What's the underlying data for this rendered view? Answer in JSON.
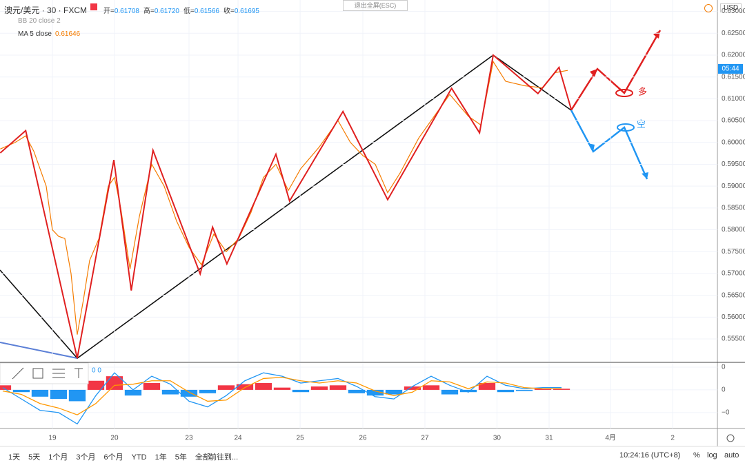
{
  "header": {
    "symbol": "澳元/美元 · 30 · FXCM",
    "ohlc": [
      {
        "k": "开=",
        "v": "0.61708"
      },
      {
        "k": "高=",
        "v": "0.61720"
      },
      {
        "k": "低=",
        "v": "0.61566"
      },
      {
        "k": "收=",
        "v": "0.61695"
      }
    ],
    "bb": "BB 20 close 2",
    "ma": "MA 5 close",
    "ma_value": "0.61646",
    "exit": "退出全屏(ESC)",
    "currency": "USD",
    "price_tag": "05:44"
  },
  "annotations": {
    "long": "多",
    "short": "空",
    "macd_params": "0 0"
  },
  "toolbar": {
    "ranges": [
      "1天",
      "5天",
      "1个月",
      "3个月",
      "6个月",
      "YTD",
      "1年",
      "5年",
      "全部"
    ],
    "goto": "前往到...",
    "clock": "10:24:16 (UTC+8)",
    "pct": "%",
    "log": "log",
    "auto": "auto"
  },
  "chart_data": [
    {
      "type": "line",
      "xlim": [
        -0.844,
        10.711
      ],
      "ylim": [
        0.5498,
        0.63262
      ],
      "xticks": [
        {
          "value": 0,
          "label": "19"
        },
        {
          "value": 1,
          "label": "20"
        },
        {
          "value": 2.2,
          "label": "23"
        },
        {
          "value": 2.99,
          "label": "24"
        },
        {
          "value": 3.99,
          "label": "25"
        },
        {
          "value": 5,
          "label": "26"
        },
        {
          "value": 6,
          "label": "27"
        },
        {
          "value": 7.16,
          "label": "30"
        },
        {
          "value": 8,
          "label": "31"
        },
        {
          "value": 8.99,
          "label": "4月"
        },
        {
          "value": 9.99,
          "label": "2"
        }
      ],
      "yticks": [
        {
          "value": 0.63,
          "label": "0.63000"
        },
        {
          "value": 0.625,
          "label": "0.62500"
        },
        {
          "value": 0.62,
          "label": "0.62000"
        },
        {
          "value": 0.615,
          "label": "0.61500"
        },
        {
          "value": 0.61,
          "label": "0.61000"
        },
        {
          "value": 0.605,
          "label": "0.60500"
        },
        {
          "value": 0.6,
          "label": "0.60000"
        },
        {
          "value": 0.595,
          "label": "0.59500"
        },
        {
          "value": 0.59,
          "label": "0.59000"
        },
        {
          "value": 0.585,
          "label": "0.58500"
        },
        {
          "value": 0.58,
          "label": "0.58000"
        },
        {
          "value": 0.575,
          "label": "0.57500"
        },
        {
          "value": 0.57,
          "label": "0.57000"
        },
        {
          "value": 0.565,
          "label": "0.56500"
        },
        {
          "value": 0.56,
          "label": "0.56000"
        },
        {
          "value": 0.555,
          "label": "0.55500"
        }
      ],
      "series": [
        {
          "name": "MA 5 close",
          "color": "#f57c00",
          "x": [
            -0.84,
            -0.6,
            -0.43,
            -0.3,
            -0.1,
            0.0,
            0.1,
            0.2,
            0.3,
            0.4,
            0.5,
            0.6,
            0.75,
            0.9,
            1.0,
            1.1,
            1.25,
            1.4,
            1.6,
            1.8,
            2.0,
            2.2,
            2.4,
            2.6,
            2.8,
            3.0,
            3.2,
            3.4,
            3.6,
            3.8,
            4.0,
            4.3,
            4.6,
            4.8,
            5.0,
            5.2,
            5.4,
            5.6,
            5.9,
            6.2,
            6.4,
            6.7,
            6.9,
            7.1,
            7.3,
            7.6,
            7.9,
            8.1,
            8.3
          ],
          "values": [
            0.5985,
            0.6,
            0.6015,
            0.598,
            0.59,
            0.58,
            0.5785,
            0.578,
            0.57,
            0.556,
            0.564,
            0.573,
            0.578,
            0.59,
            0.592,
            0.585,
            0.571,
            0.583,
            0.595,
            0.59,
            0.582,
            0.576,
            0.572,
            0.579,
            0.575,
            0.578,
            0.584,
            0.592,
            0.595,
            0.589,
            0.594,
            0.599,
            0.605,
            0.6,
            0.597,
            0.595,
            0.5885,
            0.593,
            0.601,
            0.607,
            0.611,
            0.606,
            0.604,
            0.6185,
            0.614,
            0.613,
            0.6125,
            0.616,
            0.6165
          ]
        },
        {
          "color": "#e02020",
          "x": [
            -0.84,
            -0.43,
            0.4,
            0.99,
            1.27,
            1.62,
            2.38,
            2.58,
            2.81,
            3.6,
            3.82,
            4.68,
            5.4,
            6.43,
            6.88,
            7.1,
            7.82,
            8.16,
            8.36
          ],
          "values": [
            0.5976,
            0.6027,
            0.5506,
            0.596,
            0.5661,
            0.5982,
            0.5699,
            0.5806,
            0.5722,
            0.5973,
            0.5866,
            0.6071,
            0.5869,
            0.6124,
            0.6022,
            0.62,
            0.6112,
            0.6172,
            0.6074
          ]
        }
      ]
    },
    {
      "type": "macd",
      "xlim": [
        -0.844,
        10.711
      ],
      "ylim": [
        -0.0034,
        0.00236
      ],
      "yticks": [
        {
          "value": 0.002,
          "label": "0"
        },
        0,
        {
          "value": -0.002,
          "label": "−0"
        }
      ],
      "x": [
        -0.8,
        -0.5,
        -0.2,
        0.1,
        0.4,
        0.7,
        1.0,
        1.3,
        1.6,
        1.9,
        2.2,
        2.5,
        2.8,
        3.1,
        3.4,
        3.7,
        4.0,
        4.3,
        4.6,
        4.9,
        5.2,
        5.5,
        5.8,
        6.1,
        6.4,
        6.7,
        7.0,
        7.3,
        7.6,
        7.9,
        8.2
      ],
      "histogram": {
        "up_color": "#f23645",
        "down_color": "#2196f3",
        "values": [
          0.0004,
          -0.0002,
          -0.0006,
          -0.0008,
          -0.001,
          0.0008,
          0.0012,
          -0.0005,
          0.0006,
          -0.0004,
          -0.0006,
          -0.0003,
          0.0004,
          0.0005,
          0.0006,
          0.0002,
          -0.0002,
          0.0003,
          0.0004,
          -0.0003,
          -0.0005,
          -0.0004,
          0.0003,
          0.0004,
          -0.0004,
          -0.0002,
          0.0006,
          -0.0002,
          -0.0001,
          0.0001,
          0.0001
        ]
      },
      "series": [
        {
          "color": "#2196f3",
          "values": [
            0.0002,
            -0.0008,
            -0.0018,
            -0.002,
            -0.003,
            -0.0005,
            0.0015,
            0.0,
            0.0012,
            0.0005,
            -0.001,
            -0.0015,
            -0.0005,
            0.0008,
            0.0015,
            0.0012,
            0.0006,
            0.0008,
            0.001,
            0.0003,
            -0.0006,
            -0.0008,
            0.0003,
            0.0012,
            0.0004,
            -0.0002,
            0.0012,
            0.0004,
            0.0001,
            0.0002,
            0.0002
          ]
        },
        {
          "color": "#ff9800",
          "values": [
            -0.0001,
            -0.0004,
            -0.0012,
            -0.0016,
            -0.0022,
            -0.0012,
            0.0004,
            0.0005,
            0.0008,
            0.0008,
            -0.0002,
            -0.001,
            -0.0009,
            0.0002,
            0.001,
            0.0011,
            0.0008,
            0.0006,
            0.0008,
            0.0006,
            -0.0001,
            -0.0005,
            -0.0002,
            0.0008,
            0.0007,
            0.0001,
            0.0007,
            0.0006,
            0.0002,
            0.0001,
            0.0001
          ]
        }
      ]
    }
  ]
}
